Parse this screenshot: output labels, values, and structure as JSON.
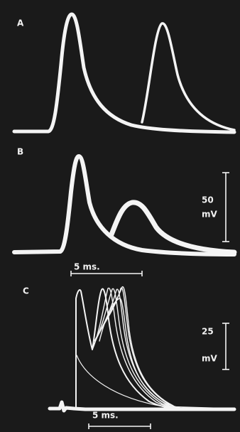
{
  "panels": [
    {
      "label": "A"
    },
    {
      "label": "B",
      "voltage_bar": {
        "value": "50",
        "unit": "mV"
      },
      "time_bar": "5 ms."
    },
    {
      "label": "C",
      "voltage_bar": {
        "value": "25",
        "unit": "mV"
      },
      "time_bar": "5 ms."
    }
  ]
}
